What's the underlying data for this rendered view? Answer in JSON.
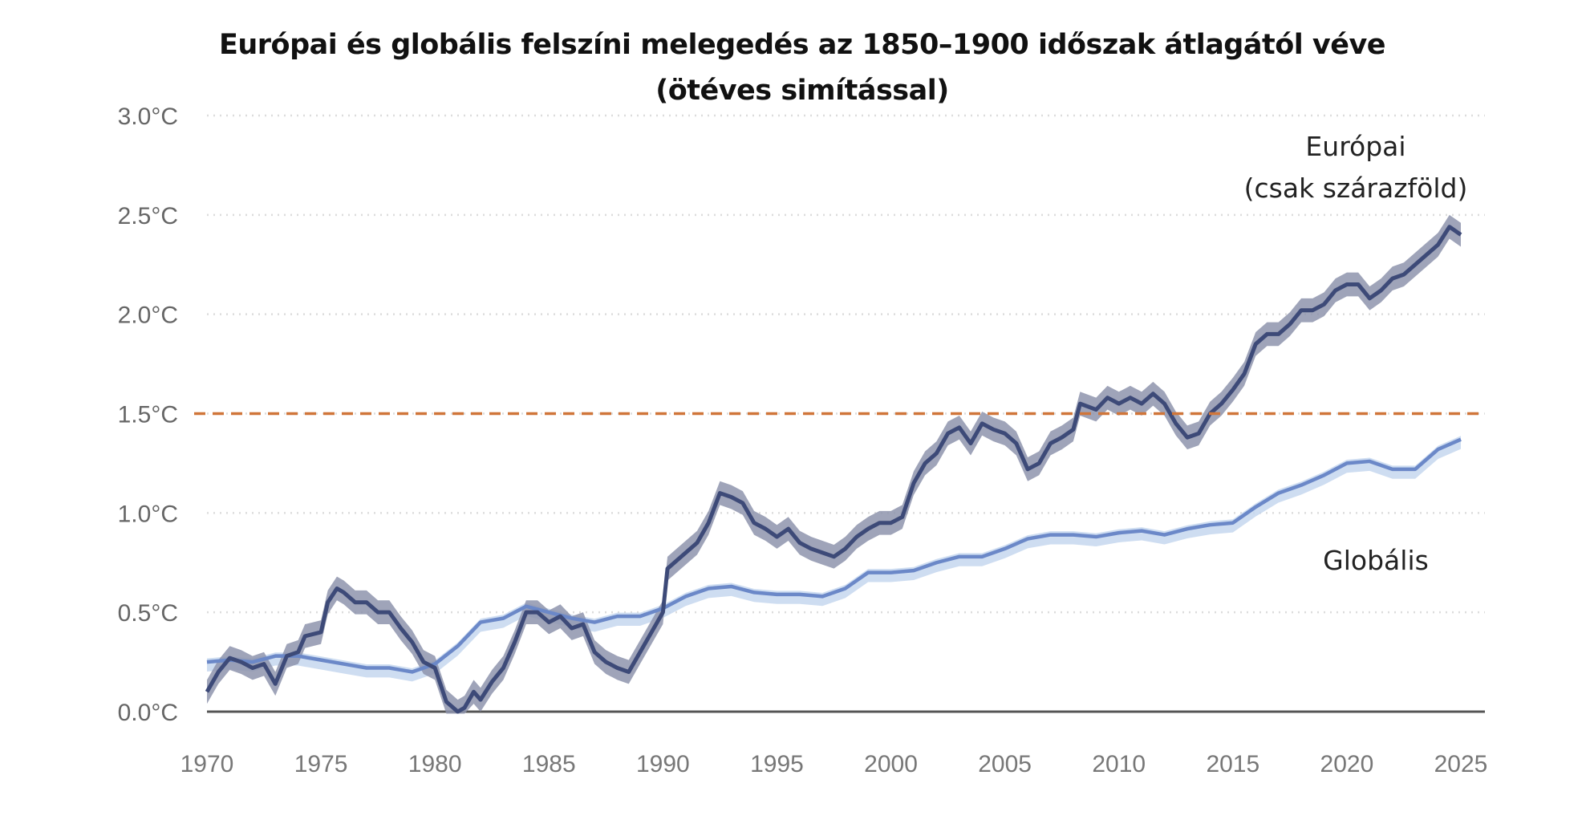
{
  "chart_data": {
    "type": "line",
    "title": "Európai és globális felszíni melegedés az 1850–1900 időszak átlagától véve",
    "subtitle": "(ötéves simítással)",
    "xlim": [
      1970,
      2025
    ],
    "ylim": [
      0,
      3.0
    ],
    "x_ticks": [
      "1970",
      "1975",
      "1980",
      "1985",
      "1990",
      "1995",
      "2000",
      "2005",
      "2010",
      "2015",
      "2020",
      "2025"
    ],
    "x_tick_values": [
      1970,
      1975,
      1980,
      1985,
      1990,
      1995,
      2000,
      2005,
      2010,
      2015,
      2020,
      2025
    ],
    "y_ticks": [
      "0.0°C",
      "0.5°C",
      "1.0°C",
      "1.5°C",
      "2.0°C",
      "2.5°C",
      "3.0°C"
    ],
    "y_tick_values": [
      0,
      0.5,
      1.0,
      1.5,
      2.0,
      2.5,
      3.0
    ],
    "grid": "horizontal dotted",
    "reference_line": {
      "value": 1.5,
      "style": "dashed",
      "color": "#d0763a"
    },
    "series": [
      {
        "name": "Európai",
        "name_line2": "(csak szárazföld)",
        "color": "#3d4a78",
        "band_color": "#8e94ad",
        "band_halfwidth": 0.06,
        "x": [
          1970,
          1970.5,
          1971,
          1971.5,
          1972,
          1972.5,
          1973,
          1973.5,
          1974,
          1974.3,
          1975,
          1975.3,
          1975.7,
          1976,
          1976.5,
          1977,
          1977.5,
          1978,
          1978.5,
          1979,
          1979.5,
          1980,
          1980.5,
          1981,
          1981.3,
          1981.7,
          1982,
          1982.5,
          1983,
          1983.5,
          1984,
          1984.5,
          1985,
          1985.5,
          1986,
          1986.5,
          1987,
          1987.5,
          1988,
          1988.5,
          1989,
          1989.5,
          1990,
          1990.2,
          1990.5,
          1991,
          1991.5,
          1992,
          1992.5,
          1993,
          1993.5,
          1994,
          1994.5,
          1995,
          1995.5,
          1996,
          1996.5,
          1997,
          1997.5,
          1998,
          1998.5,
          1999,
          1999.5,
          2000,
          2000.5,
          2001,
          2001.5,
          2002,
          2002.5,
          2003,
          2003.5,
          2004,
          2004.5,
          2005,
          2005.5,
          2006,
          2006.5,
          2007,
          2007.5,
          2008,
          2008.3,
          2009,
          2009.5,
          2010,
          2010.5,
          2011,
          2011.5,
          2012,
          2012.5,
          2013,
          2013.5,
          2014,
          2014.5,
          2015,
          2015.5,
          2016,
          2016.5,
          2017,
          2017.5,
          2018,
          2018.5,
          2019,
          2019.5,
          2020,
          2020.5,
          2021,
          2021.5,
          2022,
          2022.5,
          2023,
          2023.5,
          2024,
          2024.5,
          2025
        ],
        "y": [
          0.1,
          0.2,
          0.27,
          0.25,
          0.22,
          0.24,
          0.14,
          0.28,
          0.3,
          0.38,
          0.4,
          0.55,
          0.62,
          0.6,
          0.55,
          0.55,
          0.5,
          0.5,
          0.42,
          0.35,
          0.25,
          0.22,
          0.05,
          0.0,
          0.02,
          0.1,
          0.06,
          0.15,
          0.22,
          0.35,
          0.5,
          0.5,
          0.45,
          0.48,
          0.42,
          0.44,
          0.3,
          0.25,
          0.22,
          0.2,
          0.3,
          0.4,
          0.5,
          0.72,
          0.75,
          0.8,
          0.85,
          0.95,
          1.1,
          1.08,
          1.05,
          0.95,
          0.92,
          0.88,
          0.92,
          0.85,
          0.82,
          0.8,
          0.78,
          0.82,
          0.88,
          0.92,
          0.95,
          0.95,
          0.98,
          1.15,
          1.25,
          1.3,
          1.4,
          1.43,
          1.35,
          1.45,
          1.42,
          1.4,
          1.35,
          1.22,
          1.25,
          1.35,
          1.38,
          1.42,
          1.55,
          1.52,
          1.58,
          1.55,
          1.58,
          1.55,
          1.6,
          1.55,
          1.45,
          1.38,
          1.4,
          1.5,
          1.55,
          1.62,
          1.7,
          1.85,
          1.9,
          1.9,
          1.95,
          2.02,
          2.02,
          2.05,
          2.12,
          2.15,
          2.15,
          2.08,
          2.12,
          2.18,
          2.2,
          2.25,
          2.3,
          2.35,
          2.44,
          2.4
        ]
      },
      {
        "name": "Globális",
        "color": "#6b88c8",
        "band_color": "#c6d7ef",
        "band_halfwidth": 0.03,
        "x": [
          1970,
          1971,
          1972,
          1973,
          1974,
          1975,
          1976,
          1977,
          1978,
          1979,
          1980,
          1981,
          1982,
          1983,
          1984,
          1985,
          1986,
          1987,
          1988,
          1989,
          1990,
          1991,
          1992,
          1993,
          1994,
          1995,
          1996,
          1997,
          1998,
          1999,
          2000,
          2001,
          2002,
          2003,
          2004,
          2005,
          2006,
          2007,
          2008,
          2009,
          2010,
          2011,
          2012,
          2013,
          2014,
          2015,
          2016,
          2017,
          2018,
          2019,
          2020,
          2021,
          2022,
          2023,
          2024,
          2025
        ],
        "y": [
          0.25,
          0.26,
          0.25,
          0.28,
          0.28,
          0.26,
          0.24,
          0.22,
          0.22,
          0.2,
          0.24,
          0.33,
          0.45,
          0.47,
          0.53,
          0.5,
          0.47,
          0.45,
          0.48,
          0.48,
          0.52,
          0.58,
          0.62,
          0.63,
          0.6,
          0.59,
          0.59,
          0.58,
          0.62,
          0.7,
          0.7,
          0.71,
          0.75,
          0.78,
          0.78,
          0.82,
          0.87,
          0.89,
          0.89,
          0.88,
          0.9,
          0.91,
          0.89,
          0.92,
          0.94,
          0.95,
          1.03,
          1.1,
          1.14,
          1.19,
          1.25,
          1.26,
          1.22,
          1.22,
          1.32,
          1.37
        ]
      }
    ]
  }
}
